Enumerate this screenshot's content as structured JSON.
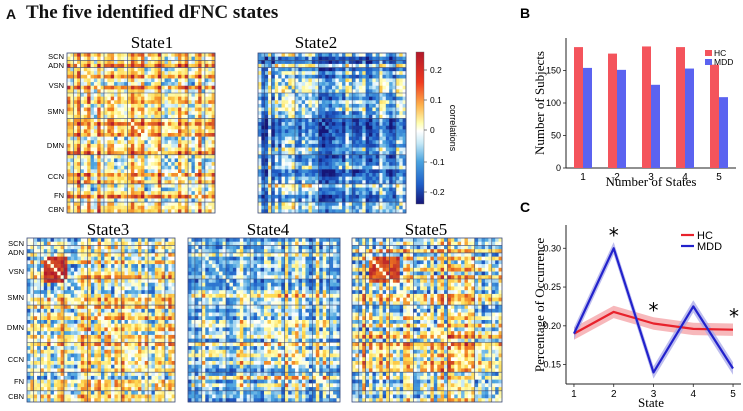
{
  "panel_a": {
    "letter": "A",
    "title": "The five identified dFNC states",
    "network_labels": [
      "SCN",
      "ADN",
      "VSN",
      "SMN",
      "DMN",
      "CCN",
      "FN",
      "CBN"
    ],
    "colorbar": {
      "label": "correlations",
      "ticks": [
        "0.2",
        "0.1",
        "0",
        "-0.1",
        "-0.2"
      ],
      "colors": {
        "pos_high": "#b2182b",
        "pos_mid": "#f4a000",
        "pos_low": "#fff7a0",
        "zero": "#ffffff",
        "neg_low": "#9fd8f2",
        "neg_mid": "#2b83d8",
        "neg_high": "#1a1a8c"
      }
    }
  },
  "panel_b": {
    "letter": "B"
  },
  "panel_c": {
    "letter": "C",
    "asterisk": "*"
  },
  "chart_data": [
    {
      "type": "heatmap",
      "title": "The five identified dFNC states",
      "matrices": [
        "State1",
        "State2",
        "State3",
        "State4",
        "State5"
      ],
      "row_labels": [
        "SCN",
        "ADN",
        "VSN",
        "SMN",
        "DMN",
        "CCN",
        "FN",
        "CBN"
      ],
      "color_scale_label": "correlations",
      "color_range": [
        -0.25,
        0.25
      ]
    },
    {
      "type": "bar",
      "categories": [
        "1",
        "2",
        "3",
        "4",
        "5"
      ],
      "series": [
        {
          "name": "HC",
          "values": [
            186,
            176,
            187,
            186,
            159
          ],
          "color": "#f4545c"
        },
        {
          "name": "MDD",
          "values": [
            154,
            151,
            128,
            153,
            109
          ],
          "color": "#5b63f0"
        }
      ],
      "xlabel": "Number of States",
      "ylabel": "Number of Subjects",
      "ylim": [
        0,
        200
      ],
      "yticks": [
        0,
        50,
        100,
        150
      ],
      "legend_position": "top-right"
    },
    {
      "type": "line",
      "x": [
        1,
        2,
        3,
        4,
        5
      ],
      "series": [
        {
          "name": "HC",
          "values": [
            0.19,
            0.218,
            0.203,
            0.196,
            0.195
          ],
          "color": "#e8222c",
          "band_color": "#f4a0a4"
        },
        {
          "name": "MDD",
          "values": [
            0.19,
            0.3,
            0.14,
            0.225,
            0.145
          ],
          "color": "#2222cc",
          "band_color": "#a8a8e8"
        }
      ],
      "significant_at": [
        2,
        3,
        5
      ],
      "xlabel": "State",
      "ylabel": "Percentage of Occurrence",
      "xlim": [
        0.8,
        5.2
      ],
      "ylim": [
        0.125,
        0.33
      ],
      "yticks": [
        0.15,
        0.2,
        0.25,
        0.3
      ],
      "xticks": [
        1,
        2,
        3,
        4,
        5
      ],
      "legend_position": "top-right"
    }
  ]
}
